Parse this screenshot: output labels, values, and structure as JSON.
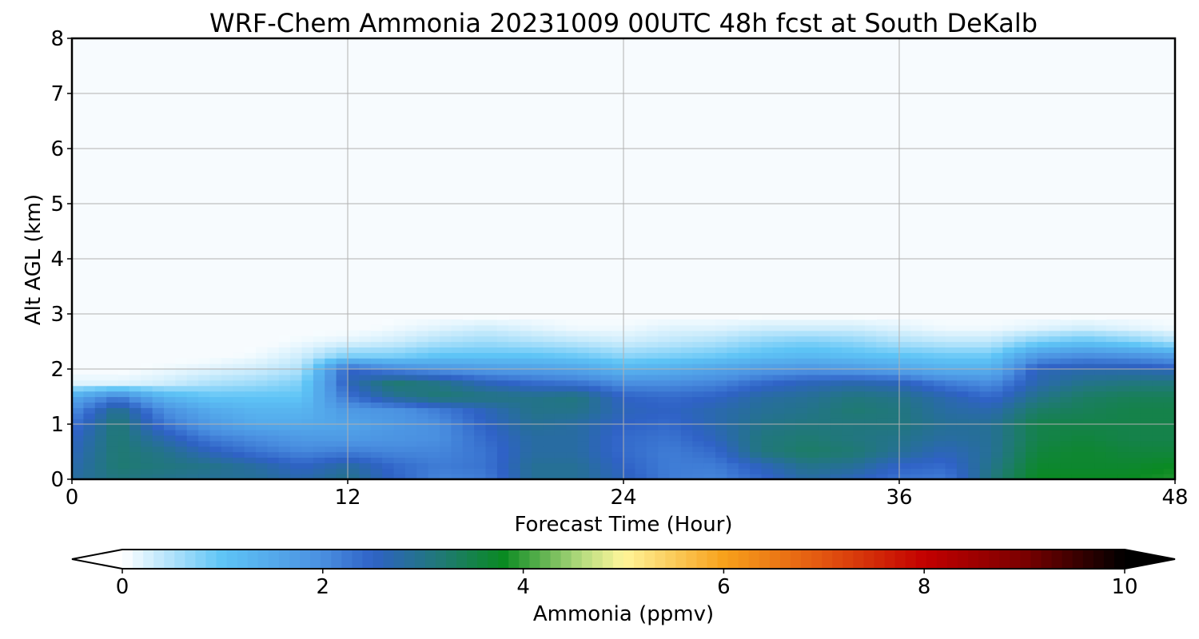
{
  "chart_data": {
    "type": "heatmap",
    "title": "WRF-Chem Ammonia  20231009 00UTC 48h fcst at South DeKalb",
    "xlabel": "Forecast Time (Hour)",
    "ylabel": "Alt AGL (km)",
    "xlim": [
      0,
      48
    ],
    "ylim": [
      0,
      8
    ],
    "x_ticks": [
      "0",
      "12",
      "24",
      "36",
      "48"
    ],
    "y_ticks": [
      "0",
      "1",
      "2",
      "3",
      "4",
      "5",
      "6",
      "7",
      "8"
    ],
    "grid": true,
    "x": [
      0,
      2,
      4,
      6,
      8,
      10,
      12,
      14,
      16,
      18,
      20,
      22,
      24,
      26,
      28,
      30,
      32,
      34,
      36,
      38,
      40,
      42,
      44,
      46,
      48
    ],
    "y": [
      0,
      0.25,
      0.5,
      0.75,
      1.0,
      1.25,
      1.5,
      1.75,
      2.0,
      2.25,
      2.5,
      2.75,
      3.0
    ],
    "z_note": "rows are altitudes y (km), columns are forecast hours x; values in ppmv; above 3 km ~0",
    "z": [
      [
        2.8,
        3.1,
        3.0,
        2.9,
        2.9,
        2.7,
        3.0,
        2.5,
        2.1,
        2.2,
        2.9,
        2.9,
        2.6,
        2.2,
        2.1,
        2.4,
        2.8,
        2.6,
        2.3,
        2.2,
        3.1,
        3.8,
        3.8,
        3.8,
        3.9
      ],
      [
        2.7,
        3.2,
        3.1,
        3.0,
        2.8,
        2.5,
        2.8,
        2.4,
        2.2,
        2.3,
        2.9,
        2.9,
        2.5,
        2.2,
        2.2,
        2.6,
        3.0,
        2.9,
        2.5,
        2.4,
        3.0,
        3.7,
        3.7,
        3.7,
        3.8
      ],
      [
        2.6,
        3.2,
        3.0,
        2.6,
        2.3,
        2.1,
        2.2,
        2.1,
        2.1,
        2.3,
        2.8,
        2.8,
        2.4,
        2.2,
        2.4,
        3.1,
        3.3,
        3.2,
        2.9,
        2.6,
        2.9,
        3.6,
        3.7,
        3.6,
        3.6
      ],
      [
        2.5,
        3.2,
        2.7,
        2.2,
        2.0,
        1.8,
        1.8,
        1.9,
        2.0,
        2.4,
        2.8,
        2.8,
        2.4,
        2.3,
        2.6,
        3.1,
        3.2,
        3.1,
        3.0,
        2.8,
        2.9,
        3.5,
        3.6,
        3.5,
        3.5
      ],
      [
        2.3,
        3.2,
        2.3,
        1.8,
        1.5,
        1.5,
        1.6,
        1.8,
        2.0,
        2.5,
        2.9,
        2.8,
        2.5,
        2.4,
        2.7,
        3.0,
        3.1,
        3.1,
        3.1,
        2.9,
        2.9,
        3.5,
        3.5,
        3.5,
        3.5
      ],
      [
        2.0,
        3.0,
        2.0,
        1.5,
        1.3,
        1.3,
        1.8,
        1.9,
        2.2,
        2.6,
        3.0,
        3.0,
        2.6,
        2.5,
        2.7,
        2.9,
        3.0,
        3.2,
        3.1,
        2.8,
        2.7,
        3.3,
        3.4,
        3.5,
        3.5
      ],
      [
        1.5,
        2.2,
        1.3,
        1.0,
        1.0,
        1.0,
        2.3,
        2.9,
        3.2,
        3.1,
        3.0,
        3.1,
        2.5,
        2.4,
        2.5,
        2.8,
        2.9,
        3.1,
        3.0,
        2.7,
        2.4,
        3.0,
        3.3,
        3.4,
        3.4
      ],
      [
        0.2,
        0.2,
        0.3,
        0.5,
        0.6,
        0.8,
        2.6,
        3.2,
        3.0,
        2.6,
        2.4,
        2.3,
        2.0,
        2.0,
        2.1,
        2.4,
        2.6,
        2.7,
        2.6,
        2.2,
        2.0,
        2.7,
        3.0,
        3.1,
        3.1
      ],
      [
        0.0,
        0.0,
        0.1,
        0.2,
        0.3,
        0.5,
        2.5,
        2.1,
        1.9,
        1.8,
        1.7,
        1.6,
        1.3,
        1.4,
        1.6,
        1.8,
        1.9,
        1.8,
        1.6,
        1.4,
        1.4,
        2.6,
        2.7,
        2.7,
        2.6
      ],
      [
        0.0,
        0.0,
        0.0,
        0.0,
        0.1,
        0.3,
        0.8,
        0.8,
        1.0,
        1.0,
        1.0,
        0.9,
        0.7,
        0.8,
        0.9,
        1.1,
        1.2,
        1.1,
        1.0,
        0.9,
        0.9,
        1.8,
        2.0,
        1.9,
        1.7
      ],
      [
        0.0,
        0.0,
        0.0,
        0.0,
        0.0,
        0.1,
        0.2,
        0.3,
        0.5,
        0.6,
        0.5,
        0.4,
        0.3,
        0.4,
        0.5,
        0.7,
        0.8,
        0.7,
        0.5,
        0.4,
        0.4,
        0.8,
        1.0,
        0.8,
        0.5
      ],
      [
        0.0,
        0.0,
        0.0,
        0.0,
        0.0,
        0.0,
        0.0,
        0.1,
        0.2,
        0.3,
        0.2,
        0.1,
        0.1,
        0.2,
        0.2,
        0.3,
        0.3,
        0.3,
        0.2,
        0.1,
        0.1,
        0.2,
        0.3,
        0.2,
        0.1
      ],
      [
        0.0,
        0.0,
        0.0,
        0.0,
        0.0,
        0.0,
        0.0,
        0.0,
        0.0,
        0.0,
        0.0,
        0.0,
        0.0,
        0.0,
        0.0,
        0.0,
        0.0,
        0.0,
        0.0,
        0.0,
        0.0,
        0.0,
        0.0,
        0.0,
        0.0
      ]
    ],
    "colorbar": {
      "label": "Ammonia  (ppmv)",
      "ticks": [
        "0",
        "2",
        "4",
        "6",
        "8",
        "10"
      ],
      "range": [
        0,
        10
      ],
      "extend": "both",
      "stops": [
        {
          "v": 0.0,
          "c": "#ffffff"
        },
        {
          "v": 1.0,
          "c": "#5ec4f6"
        },
        {
          "v": 2.0,
          "c": "#4a8fe0"
        },
        {
          "v": 2.5,
          "c": "#2f62c6"
        },
        {
          "v": 3.2,
          "c": "#1f7a72"
        },
        {
          "v": 3.8,
          "c": "#0a8a22"
        },
        {
          "v": 4.6,
          "c": "#b8dd80"
        },
        {
          "v": 5.0,
          "c": "#fff59a"
        },
        {
          "v": 6.0,
          "c": "#f7a11b"
        },
        {
          "v": 7.0,
          "c": "#e25510"
        },
        {
          "v": 8.0,
          "c": "#c30000"
        },
        {
          "v": 9.0,
          "c": "#7a0000"
        },
        {
          "v": 10.0,
          "c": "#000000"
        }
      ],
      "under_color": "#ffffff",
      "over_color": "#000000"
    },
    "background_color": "#f7fbfe",
    "grid_color": "#b0b0b0"
  }
}
